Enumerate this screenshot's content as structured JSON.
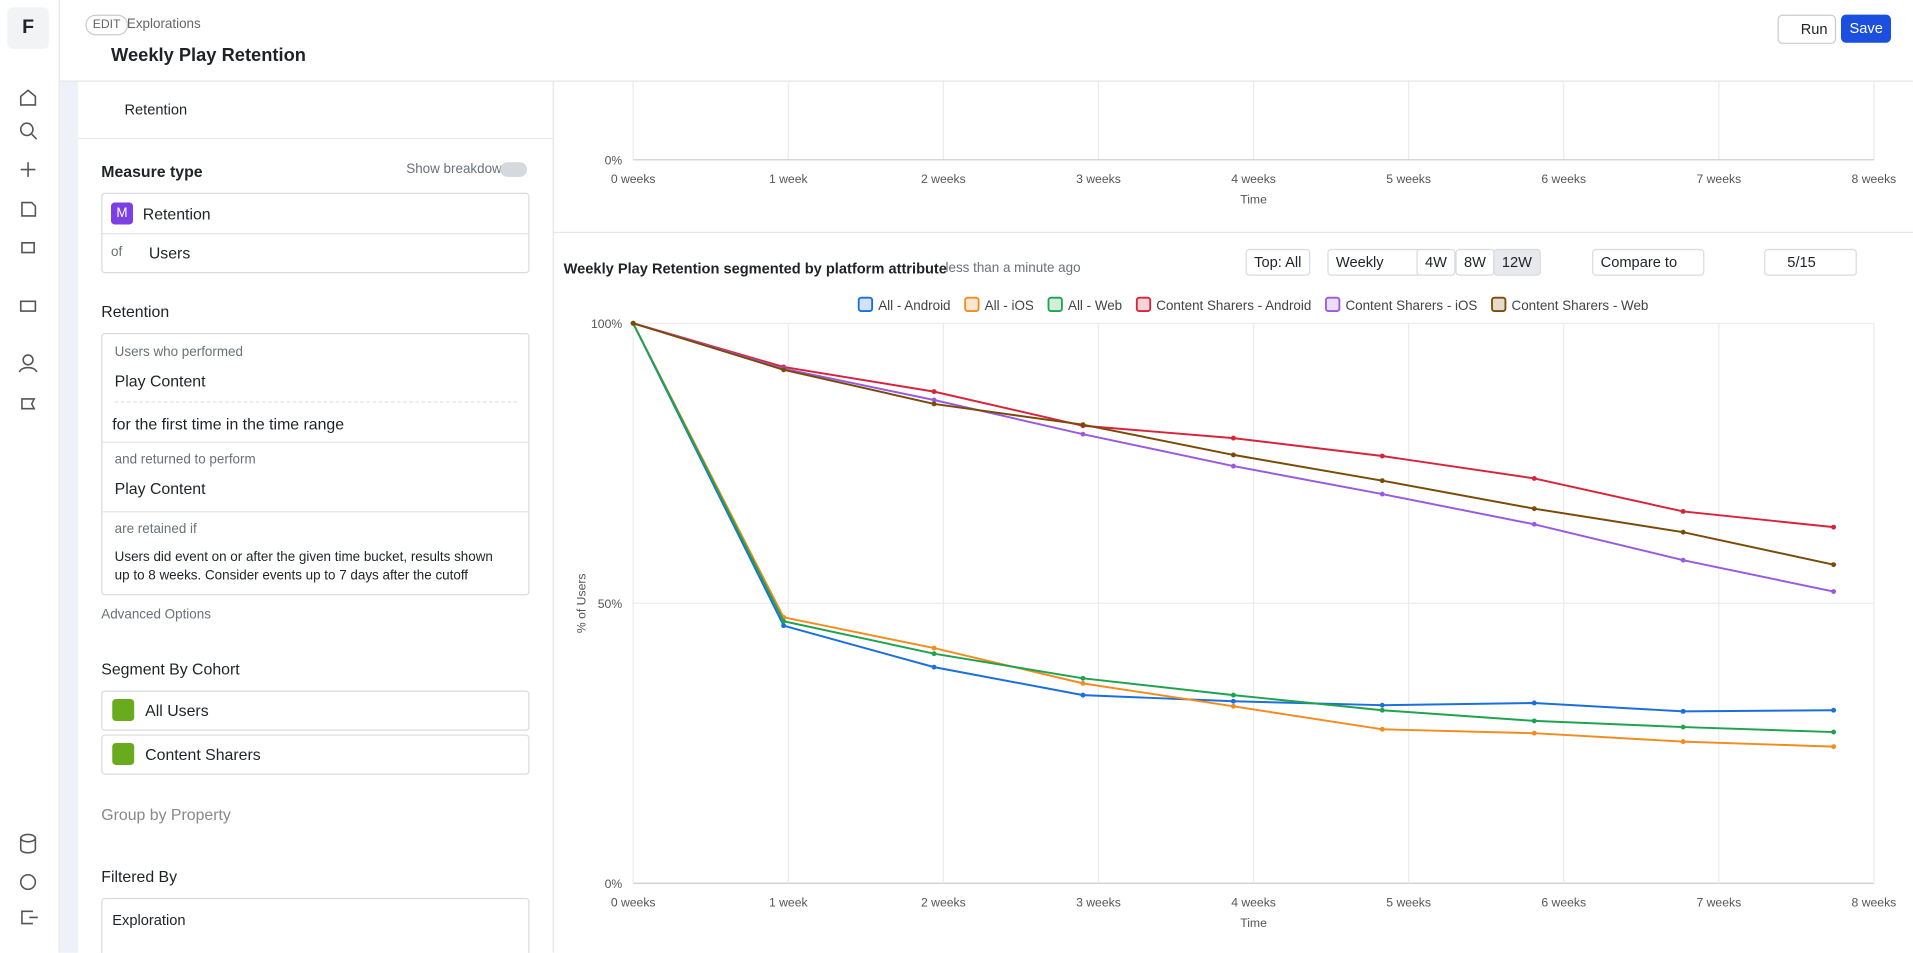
{
  "sidebar": {
    "logo": "F"
  },
  "header": {
    "edit": "EDIT",
    "breadcrumb": "Explorations",
    "title": "Weekly Play Retention",
    "run": "Run",
    "save": "Save"
  },
  "panel": {
    "section": "Retention",
    "measure_type": "Measure type",
    "show_breakdown": "Show breakdown",
    "measure_badge": "M",
    "measure": "Retention",
    "of": "of",
    "entity": "Users",
    "retention_heading": "Retention",
    "users_who_performed": "Users who performed",
    "event1": "Play Content",
    "first_time": "for the first time in the time range",
    "returned": "and returned to perform",
    "event2": "Play Content",
    "retained_if": "are retained if",
    "retained_desc": "Users did event on or after the given time bucket, results shown up to 8 weeks. Consider events up to 7 days after the cutoff",
    "advanced": "Advanced Options",
    "segment_heading": "Segment By Cohort",
    "cohorts": [
      "All Users",
      "Content Sharers"
    ],
    "group_by": "Group by Property",
    "filtered_by": "Filtered By",
    "exploration": "Exploration"
  },
  "top_chart": {
    "xlabel": "Time",
    "xlim": [
      0,
      8
    ],
    "xticks": [
      {
        "value": 0,
        "label": "0 weeks"
      },
      {
        "value": 1,
        "label": "1 week"
      },
      {
        "value": 2,
        "label": "2 weeks"
      },
      {
        "value": 3,
        "label": "3 weeks"
      },
      {
        "value": 4,
        "label": "4 weeks"
      },
      {
        "value": 5,
        "label": "5 weeks"
      },
      {
        "value": 6,
        "label": "6 weeks"
      },
      {
        "value": 7,
        "label": "7 weeks"
      },
      {
        "value": 8,
        "label": "8 weeks"
      }
    ],
    "yticks": [
      {
        "value": 0,
        "label": "0%"
      }
    ]
  },
  "chart_toolbar": {
    "updated": "less than a minute ago",
    "top": "Top: All",
    "interval": "Weekly",
    "ranges": [
      "4W",
      "8W",
      "12W"
    ],
    "compare": "Compare to",
    "visible": "5/15"
  },
  "chart_data": {
    "type": "line",
    "title": "Weekly Play Retention segmented by platform attribute",
    "xlabel": "Time",
    "ylabel": "% of Users",
    "legend": "top",
    "grid": true,
    "x": [
      0,
      0.97,
      1.94,
      2.9,
      3.87,
      4.83,
      5.81,
      6.77,
      7.74
    ],
    "xlim": [
      0,
      8
    ],
    "xticks": [
      {
        "value": 0,
        "label": "0 weeks"
      },
      {
        "value": 1,
        "label": "1 week"
      },
      {
        "value": 2,
        "label": "2 weeks"
      },
      {
        "value": 3,
        "label": "3 weeks"
      },
      {
        "value": 4,
        "label": "4 weeks"
      },
      {
        "value": 5,
        "label": "5 weeks"
      },
      {
        "value": 6,
        "label": "6 weeks"
      },
      {
        "value": 7,
        "label": "7 weeks"
      },
      {
        "value": 8,
        "label": "8 weeks"
      }
    ],
    "ylim": [
      0,
      100
    ],
    "yticks": [
      {
        "value": 0,
        "label": "0%"
      },
      {
        "value": 50,
        "label": "50%"
      },
      {
        "value": 100,
        "label": "100%"
      }
    ],
    "series": [
      {
        "name": "All - Android",
        "color": "#1a6fdf",
        "values": [
          100,
          46.0,
          38.6,
          33.6,
          32.5,
          31.8,
          32.2,
          30.7,
          30.9
        ]
      },
      {
        "name": "All - iOS",
        "color": "#f28c1e",
        "values": [
          100,
          47.5,
          42.0,
          35.7,
          31.6,
          27.5,
          26.8,
          25.3,
          24.4
        ]
      },
      {
        "name": "All - Web",
        "color": "#1ea34f",
        "values": [
          100,
          46.8,
          41.0,
          36.6,
          33.6,
          30.9,
          29.0,
          27.9,
          27.0
        ]
      },
      {
        "name": "Content Sharers - Android",
        "color": "#d9233b",
        "values": [
          100,
          92.2,
          87.8,
          81.7,
          79.5,
          76.3,
          72.3,
          66.4,
          63.6
        ]
      },
      {
        "name": "Content Sharers - iOS",
        "color": "#9b59e0",
        "values": [
          100,
          91.9,
          86.3,
          80.2,
          74.5,
          69.5,
          64.1,
          57.7,
          52.1
        ]
      },
      {
        "name": "Content Sharers - Web",
        "color": "#7a4a06",
        "values": [
          100,
          91.7,
          85.6,
          81.9,
          76.5,
          71.9,
          66.9,
          62.7,
          56.9
        ]
      }
    ]
  }
}
